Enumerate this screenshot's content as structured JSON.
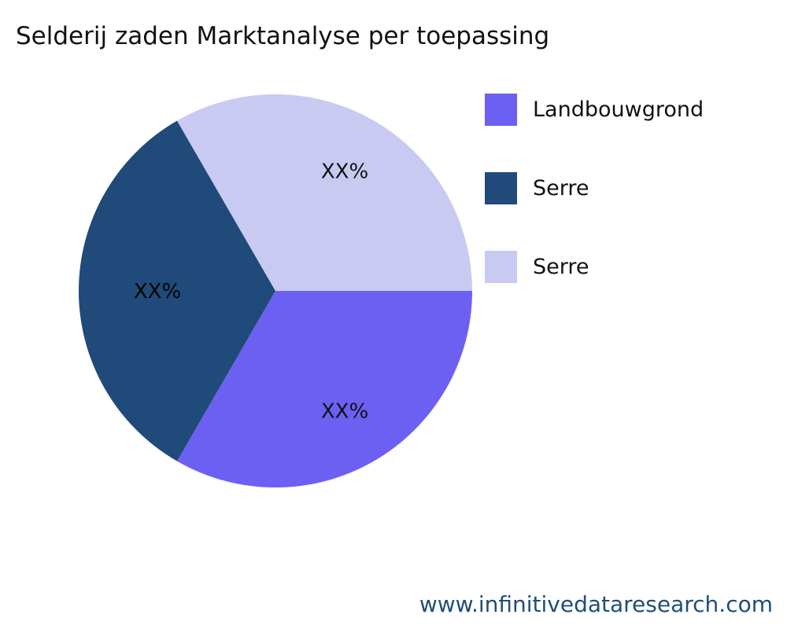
{
  "chart_data": {
    "type": "pie",
    "title": "Selderij zaden Marktanalyse per toepassing",
    "slices": [
      {
        "label": "Landbouwgrond",
        "value": 33.33,
        "display": "XX%",
        "color": "#6c60f3"
      },
      {
        "label": "Serre",
        "value": 33.33,
        "display": "XX%",
        "color": "#1f4a79"
      },
      {
        "label": "Serre",
        "value": 33.33,
        "display": "XX%",
        "color": "#c9caf2"
      }
    ],
    "legend_position": "right"
  },
  "watermark": "www.infinitivedataresearch.com"
}
